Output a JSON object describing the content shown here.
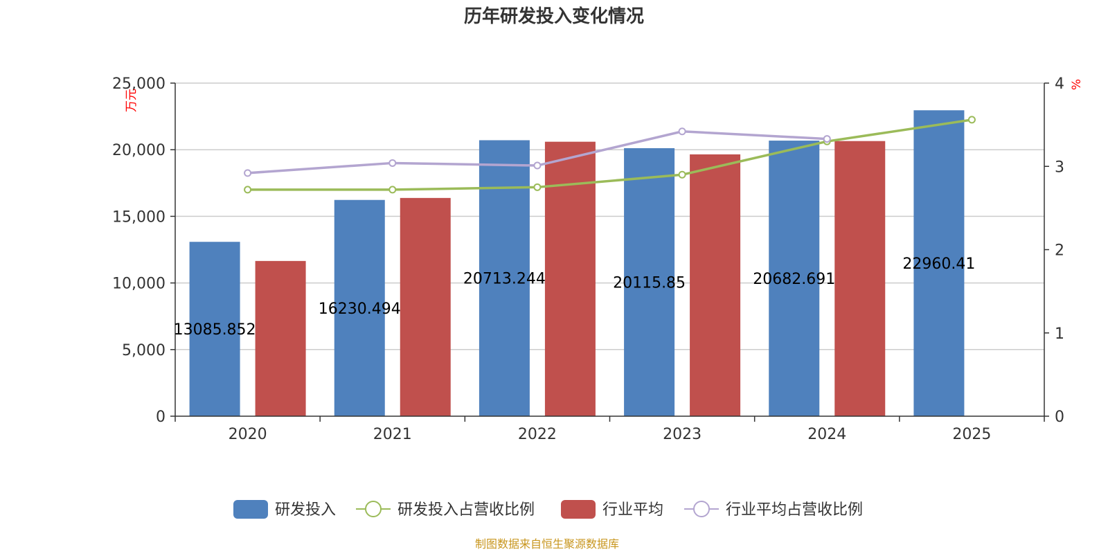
{
  "chart_data": {
    "type": "bar",
    "title": "历年研发投入变化情况",
    "categories": [
      "2020",
      "2021",
      "2022",
      "2023",
      "2024",
      "2025"
    ],
    "y_left": {
      "unit": "万元",
      "ylim": [
        0,
        25000
      ],
      "ticks": [
        "0",
        "5,000",
        "10,000",
        "15,000",
        "20,000",
        "25,000"
      ],
      "tick_values": [
        0,
        5000,
        10000,
        15000,
        20000,
        25000
      ]
    },
    "y_right": {
      "unit": "%",
      "ylim": [
        0,
        4
      ],
      "ticks": [
        "0",
        "1",
        "2",
        "3",
        "4"
      ],
      "tick_values": [
        0,
        1,
        2,
        3,
        4
      ]
    },
    "series": [
      {
        "name": "研发投入",
        "kind": "bar",
        "axis": "left",
        "color": "#4f81bd",
        "values": [
          13085.852,
          16230.494,
          20713.244,
          20115.85,
          20682.691,
          22960.41
        ],
        "labels": [
          "13085.852",
          "16230.494",
          "20713.244",
          "20115.85",
          "20682.691",
          "22960.41"
        ]
      },
      {
        "name": "研发投入占营收比例",
        "kind": "line",
        "axis": "right",
        "color": "#9bbb59",
        "values": [
          2.72,
          2.72,
          2.75,
          2.9,
          3.3,
          3.56
        ]
      },
      {
        "name": "行业平均",
        "kind": "bar",
        "axis": "left",
        "color": "#c0504d",
        "values": [
          11650,
          16380,
          20600,
          19650,
          20650,
          null
        ]
      },
      {
        "name": "行业平均占营收比例",
        "kind": "line",
        "axis": "right",
        "color": "#b3a5d0",
        "values": [
          2.92,
          3.04,
          3.01,
          3.42,
          3.33,
          null
        ]
      }
    ],
    "legend_position": "bottom",
    "grid": true,
    "source": "制图数据来自恒生聚源数据库"
  }
}
